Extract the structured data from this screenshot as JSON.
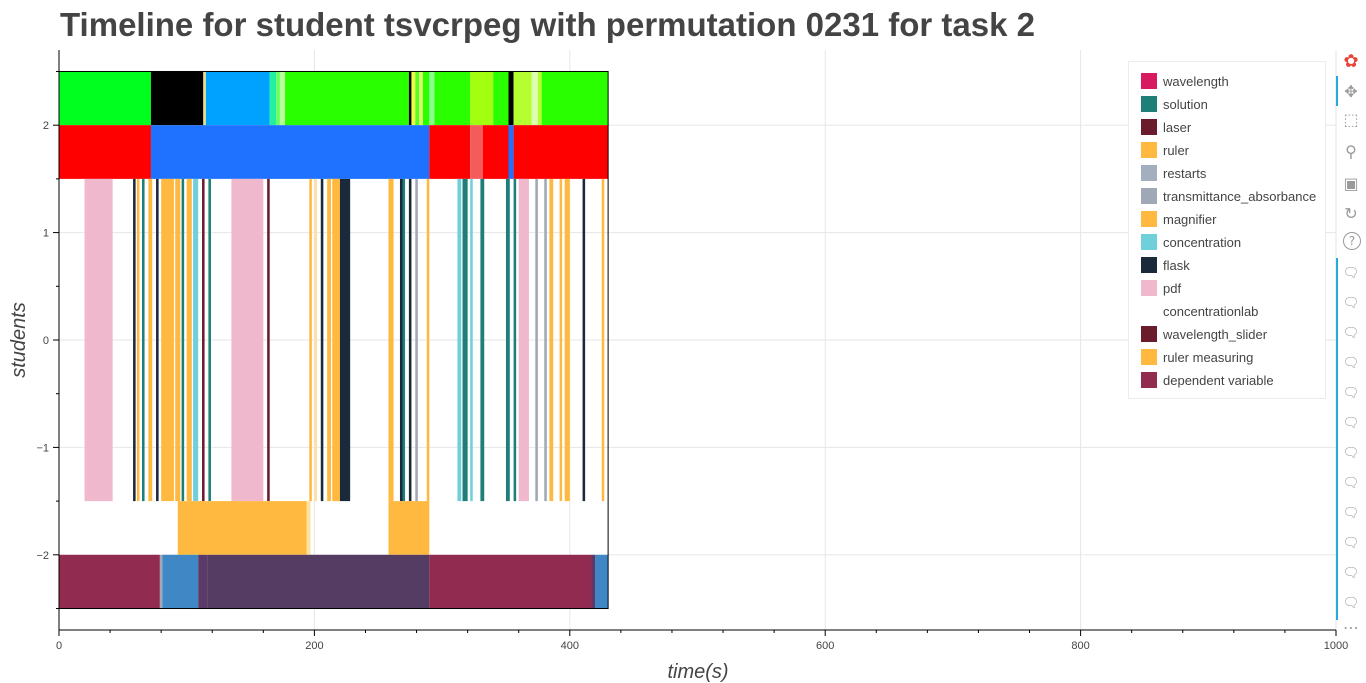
{
  "chart_data": {
    "type": "timeline",
    "title": "Timeline for student tsvcrpeg with permutation 0231 for task 2",
    "xlabel": "time(s)",
    "ylabel": "students",
    "xlim": [
      0,
      1000
    ],
    "ylim": [
      -2.7,
      2.7
    ],
    "x_ticks": [
      0,
      200,
      400,
      600,
      800,
      1000
    ],
    "y_ticks": [
      2,
      1,
      0,
      -1,
      -2
    ],
    "y_tick_labels": [
      "2",
      "1",
      "0",
      "−1",
      "−2"
    ],
    "grid": true,
    "legend_position": "top-right",
    "legend": [
      {
        "label": "wavelength",
        "color": "#d81b60"
      },
      {
        "label": "solution",
        "color": "#1e7f79"
      },
      {
        "label": "laser",
        "color": "#6b1c2c"
      },
      {
        "label": "ruler",
        "color": "#ffb940"
      },
      {
        "label": "restarts",
        "color": "#a3aebf"
      },
      {
        "label": "transmittance_absorbance",
        "color": "#a0a8b8"
      },
      {
        "label": "magnifier",
        "color": "#ffb940"
      },
      {
        "label": "concentration",
        "color": "#6fd0dc"
      },
      {
        "label": "flask",
        "color": "#1b2a3b"
      },
      {
        "label": "pdf",
        "color": "#f0b8cc"
      },
      {
        "label": "concentrationlab",
        "color": "#ffffff"
      },
      {
        "label": "wavelength_slider",
        "color": "#6b1c2c"
      },
      {
        "label": "ruler measuring",
        "color": "#ffb940"
      },
      {
        "label": "dependent variable",
        "color": "#922b50"
      }
    ],
    "rows": [
      {
        "y_range": [
          2,
          2.5
        ],
        "segments": [
          {
            "start": 0,
            "end": 72,
            "color": "#00ff1e"
          },
          {
            "start": 72,
            "end": 113,
            "color": "#000000"
          },
          {
            "start": 113,
            "end": 115,
            "color": "#f2e080"
          },
          {
            "start": 115,
            "end": 165,
            "color": "#00a2ff"
          },
          {
            "start": 165,
            "end": 170,
            "color": "#22f0a0"
          },
          {
            "start": 170,
            "end": 173,
            "color": "#66ff66"
          },
          {
            "start": 173,
            "end": 177,
            "color": "#bbff99"
          },
          {
            "start": 177,
            "end": 274,
            "color": "#2aff00"
          },
          {
            "start": 274,
            "end": 276,
            "color": "#000000"
          },
          {
            "start": 276,
            "end": 279,
            "color": "#eeff44"
          },
          {
            "start": 279,
            "end": 282,
            "color": "#55ff22"
          },
          {
            "start": 282,
            "end": 285,
            "color": "#d7ff60"
          },
          {
            "start": 285,
            "end": 290,
            "color": "#2aff00"
          },
          {
            "start": 290,
            "end": 294,
            "color": "#88ff88"
          },
          {
            "start": 294,
            "end": 322,
            "color": "#2aff00"
          },
          {
            "start": 322,
            "end": 340,
            "color": "#a2ff10"
          },
          {
            "start": 340,
            "end": 352,
            "color": "#2aff00"
          },
          {
            "start": 352,
            "end": 356,
            "color": "#000000"
          },
          {
            "start": 356,
            "end": 378,
            "color": "#b5ff30"
          },
          {
            "start": 370,
            "end": 375,
            "color": "#ddffb0"
          },
          {
            "start": 378,
            "end": 430,
            "color": "#2aff00"
          }
        ]
      },
      {
        "y_range": [
          1.5,
          2
        ],
        "segments": [
          {
            "start": 0,
            "end": 72,
            "color": "#ff0000"
          },
          {
            "start": 72,
            "end": 290,
            "color": "#1f72ff"
          },
          {
            "start": 290,
            "end": 322,
            "color": "#ff0000"
          },
          {
            "start": 322,
            "end": 332,
            "color": "#f55b5b"
          },
          {
            "start": 332,
            "end": 352,
            "color": "#ff0000"
          },
          {
            "start": 352,
            "end": 356,
            "color": "#1f72ff"
          },
          {
            "start": 356,
            "end": 430,
            "color": "#ff0000"
          }
        ]
      },
      {
        "y_range": [
          -1.5,
          1.5
        ],
        "segments": [
          {
            "start": 20,
            "end": 42,
            "color": "#f0b8cc"
          },
          {
            "start": 58,
            "end": 60,
            "color": "#1b2a3b"
          },
          {
            "start": 61,
            "end": 63,
            "color": "#ffb940"
          },
          {
            "start": 65,
            "end": 67,
            "color": "#1e7f79"
          },
          {
            "start": 70,
            "end": 73,
            "color": "#ffb940"
          },
          {
            "start": 76,
            "end": 78,
            "color": "#1b2a3b"
          },
          {
            "start": 80,
            "end": 90,
            "color": "#ffb940"
          },
          {
            "start": 91,
            "end": 95,
            "color": "#ffb940"
          },
          {
            "start": 96,
            "end": 98,
            "color": "#1e7f79"
          },
          {
            "start": 100,
            "end": 104,
            "color": "#ffb940"
          },
          {
            "start": 105,
            "end": 109,
            "color": "#6fd0dc"
          },
          {
            "start": 112,
            "end": 114,
            "color": "#6b1c2c"
          },
          {
            "start": 117,
            "end": 119,
            "color": "#1e7f79"
          },
          {
            "start": 135,
            "end": 160,
            "color": "#f0b8cc"
          },
          {
            "start": 163,
            "end": 165,
            "color": "#6b1c2c"
          },
          {
            "start": 196,
            "end": 198,
            "color": "#ffb940"
          },
          {
            "start": 200,
            "end": 202,
            "color": "#ffe0a0"
          },
          {
            "start": 205,
            "end": 207,
            "color": "#1b2a3b"
          },
          {
            "start": 210,
            "end": 213,
            "color": "#ffb940"
          },
          {
            "start": 214,
            "end": 220,
            "color": "#ffb940"
          },
          {
            "start": 220,
            "end": 228,
            "color": "#1b2a3b"
          },
          {
            "start": 258,
            "end": 262,
            "color": "#ffb940"
          },
          {
            "start": 267,
            "end": 269,
            "color": "#1b2a3b"
          },
          {
            "start": 269,
            "end": 271,
            "color": "#1e7f79"
          },
          {
            "start": 274,
            "end": 276,
            "color": "#1b2a3b"
          },
          {
            "start": 279,
            "end": 281,
            "color": "#a0a8b8"
          },
          {
            "start": 288,
            "end": 290,
            "color": "#ffb940"
          },
          {
            "start": 312,
            "end": 315,
            "color": "#6fd0dc"
          },
          {
            "start": 316,
            "end": 320,
            "color": "#1e7f79"
          },
          {
            "start": 322,
            "end": 324,
            "color": "#6fd0dc"
          },
          {
            "start": 330,
            "end": 333,
            "color": "#1e7f79"
          },
          {
            "start": 350,
            "end": 353,
            "color": "#1e7f79"
          },
          {
            "start": 356,
            "end": 358,
            "color": "#1e7f79"
          },
          {
            "start": 360,
            "end": 368,
            "color": "#f0b8cc"
          },
          {
            "start": 373,
            "end": 375,
            "color": "#a0a8b8"
          },
          {
            "start": 380,
            "end": 382,
            "color": "#a0a8b8"
          },
          {
            "start": 384,
            "end": 387,
            "color": "#ffb940"
          },
          {
            "start": 392,
            "end": 394,
            "color": "#ffb940"
          },
          {
            "start": 396,
            "end": 400,
            "color": "#ffb940"
          },
          {
            "start": 410,
            "end": 412,
            "color": "#1b2a3b"
          },
          {
            "start": 425,
            "end": 427,
            "color": "#ffb940"
          }
        ]
      },
      {
        "y_range": [
          -2,
          -1.5
        ],
        "segments": [
          {
            "start": 93,
            "end": 194,
            "color": "#ffb940"
          },
          {
            "start": 194,
            "end": 197,
            "color": "#ffe0a0"
          },
          {
            "start": 258,
            "end": 290,
            "color": "#ffb940"
          }
        ]
      },
      {
        "y_range": [
          -2.5,
          -2
        ],
        "segments": [
          {
            "start": 0,
            "end": 79,
            "color": "#922b50"
          },
          {
            "start": 79,
            "end": 81,
            "color": "#a0a8b8"
          },
          {
            "start": 81,
            "end": 109,
            "color": "#3f88c5"
          },
          {
            "start": 109,
            "end": 116,
            "color": "#5a3a68"
          },
          {
            "start": 116,
            "end": 290,
            "color": "#553c63"
          },
          {
            "start": 290,
            "end": 417,
            "color": "#922b50"
          },
          {
            "start": 417,
            "end": 420,
            "color": "#5a3a68"
          },
          {
            "start": 420,
            "end": 430,
            "color": "#3f88c5"
          }
        ]
      }
    ]
  },
  "toolbar": {
    "tools": [
      {
        "name": "bokeh-logo-icon",
        "glyph": "✿"
      },
      {
        "name": "pan-icon",
        "glyph": "✥"
      },
      {
        "name": "box-zoom-icon",
        "glyph": "⬚"
      },
      {
        "name": "wheel-zoom-icon",
        "glyph": "⚲"
      },
      {
        "name": "save-icon",
        "glyph": "▣"
      },
      {
        "name": "reset-icon",
        "glyph": "↻"
      },
      {
        "name": "help-icon",
        "glyph": "?"
      },
      {
        "name": "hover-icon",
        "glyph": "🗨"
      },
      {
        "name": "more-icon",
        "glyph": "⋯"
      }
    ]
  }
}
